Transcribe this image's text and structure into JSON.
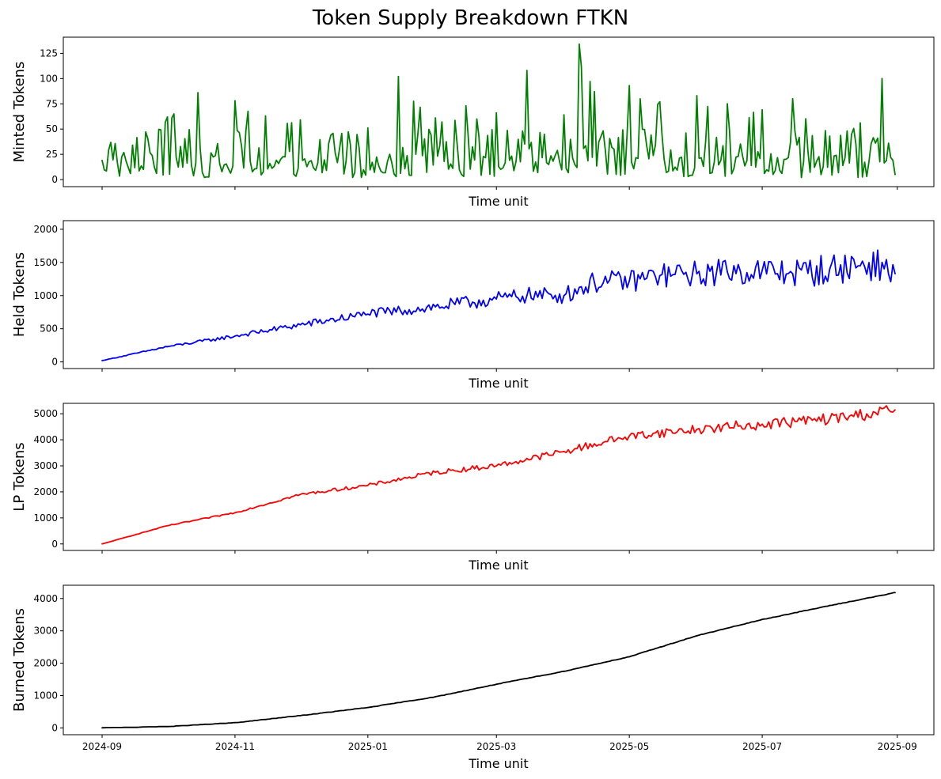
{
  "chart_data": {
    "type": "line",
    "title": "Token Supply Breakdown FTKN",
    "x_range": [
      "2024-09-01",
      "2025-08-31"
    ],
    "x_ticks": [
      "2024-09",
      "2024-11",
      "2025-01",
      "2025-03",
      "2025-05",
      "2025-07",
      "2025-09"
    ],
    "shared_x_axis": true,
    "grid": false,
    "panels": [
      {
        "ylabel": "Minted Tokens",
        "xlabel": "Time unit",
        "color": "#008000",
        "ylim": [
          -7,
          141
        ],
        "y_ticks": [
          0,
          25,
          50,
          75,
          100,
          125
        ],
        "series": {
          "x": [
            "2024-09-01",
            "2024-09-15",
            "2024-10-01",
            "2024-10-15",
            "2024-11-01",
            "2024-11-15",
            "2024-12-01",
            "2024-12-15",
            "2025-01-01",
            "2025-01-15",
            "2025-02-01",
            "2025-02-15",
            "2025-03-01",
            "2025-03-15",
            "2025-04-01",
            "2025-04-08",
            "2025-04-15",
            "2025-05-01",
            "2025-05-15",
            "2025-06-01",
            "2025-06-15",
            "2025-07-01",
            "2025-07-15",
            "2025-08-01",
            "2025-08-15",
            "2025-08-25",
            "2025-08-31"
          ],
          "y": [
            19,
            34,
            62,
            86,
            78,
            63,
            59,
            44,
            51,
            102,
            61,
            73,
            66,
            108,
            64,
            134,
            87,
            93,
            77,
            83,
            75,
            69,
            80,
            43,
            56,
            100,
            5
          ]
        }
      },
      {
        "ylabel": "Held Tokens",
        "xlabel": "Time unit",
        "color": "#0000ff",
        "ylim": [
          -100,
          2130
        ],
        "y_ticks": [
          0,
          500,
          1000,
          1500,
          2000
        ],
        "series": {
          "x": [
            "2024-09-01",
            "2024-10-01",
            "2024-11-01",
            "2024-12-01",
            "2025-01-01",
            "2025-02-01",
            "2025-03-01",
            "2025-03-15",
            "2025-04-01",
            "2025-04-15",
            "2025-05-01",
            "2025-05-15",
            "2025-06-01",
            "2025-06-15",
            "2025-07-01",
            "2025-07-15",
            "2025-08-01",
            "2025-08-15",
            "2025-08-25",
            "2025-08-31"
          ],
          "y": [
            20,
            230,
            390,
            560,
            720,
            830,
            950,
            1000,
            1000,
            1200,
            1220,
            1300,
            1330,
            1360,
            1380,
            1330,
            1400,
            1450,
            1500,
            1330
          ]
        }
      },
      {
        "ylabel": "LP Tokens",
        "xlabel": "Time unit",
        "color": "#ff0000",
        "ylim": [
          -250,
          5400
        ],
        "y_ticks": [
          0,
          1000,
          2000,
          3000,
          4000,
          5000
        ],
        "series": {
          "x": [
            "2024-09-01",
            "2024-10-01",
            "2024-11-01",
            "2024-12-01",
            "2025-01-01",
            "2025-02-01",
            "2025-03-01",
            "2025-04-01",
            "2025-05-01",
            "2025-06-01",
            "2025-07-01",
            "2025-08-01",
            "2025-08-31"
          ],
          "y": [
            0,
            700,
            1200,
            1900,
            2250,
            2750,
            3000,
            3550,
            4150,
            4400,
            4600,
            4800,
            5150
          ]
        }
      },
      {
        "ylabel": "Burned Tokens",
        "xlabel": "Time unit",
        "color": "#000000",
        "ylim": [
          -210,
          4410
        ],
        "y_ticks": [
          0,
          1000,
          2000,
          3000,
          4000
        ],
        "series": {
          "x": [
            "2024-09-01",
            "2024-10-01",
            "2024-11-01",
            "2024-12-01",
            "2025-01-01",
            "2025-02-01",
            "2025-03-01",
            "2025-04-01",
            "2025-05-01",
            "2025-06-01",
            "2025-07-01",
            "2025-08-01",
            "2025-08-31"
          ],
          "y": [
            0,
            40,
            160,
            380,
            630,
            960,
            1350,
            1750,
            2200,
            2850,
            3350,
            3780,
            4180
          ]
        }
      }
    ]
  }
}
